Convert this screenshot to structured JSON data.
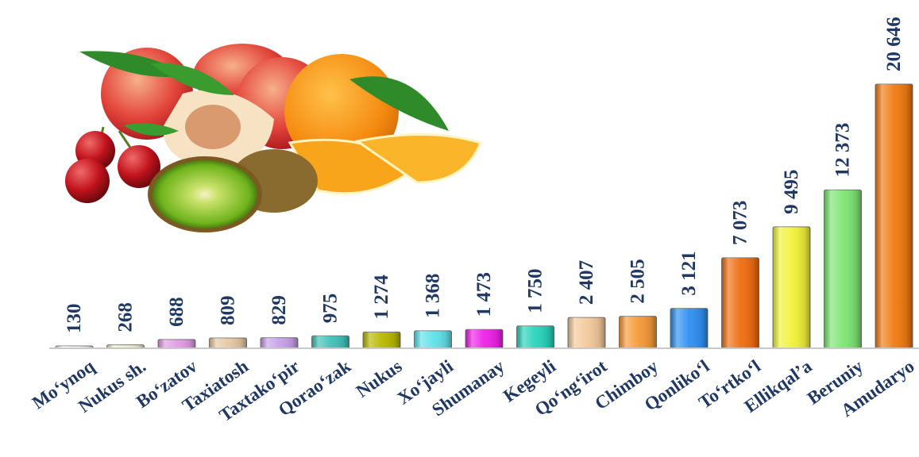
{
  "chart_data": {
    "type": "bar",
    "title": "",
    "xlabel": "",
    "ylabel": "",
    "ylim": [
      0,
      21000
    ],
    "grid": false,
    "legend": "none",
    "categories": [
      "Mo‘ynoq",
      "Nukus sh.",
      "Bo‘zatov",
      "Taxiatosh",
      "Taxtako‘pir",
      "Qorao‘zak",
      "Nukus",
      "Xo‘jayli",
      "Shumanay",
      "Kegeyli",
      "Qo‘ng‘irot",
      "Chimboy",
      "Qonliko‘l",
      "To‘rtko‘l",
      "Ellikqal’a",
      "Beruniy",
      "Amudaryo"
    ],
    "values": [
      130,
      268,
      688,
      809,
      829,
      975,
      1274,
      1368,
      1473,
      1750,
      2407,
      2505,
      3121,
      7073,
      9495,
      12373,
      20646
    ],
    "value_labels": [
      "130",
      "268",
      "688",
      "809",
      "829",
      "975",
      "1 274",
      "1 368",
      "1 473",
      "1 750",
      "2 407",
      "2 505",
      "3 121",
      "7 073",
      "9 495",
      "12 373",
      "20 646"
    ],
    "colors": [
      "#ffffff",
      "#f2eecc",
      "#e39ae6",
      "#e7c8a3",
      "#c8a0ea",
      "#3fc2b8",
      "#b8b800",
      "#5fe3ea",
      "#ee20e9",
      "#27d3bb",
      "#f3c99a",
      "#f59a38",
      "#2f8ff2",
      "#f06d10",
      "#f2f23a",
      "#7ee574",
      "#f07a10"
    ],
    "label_color": "#1f3864",
    "decorative_image": "fruit-illustration"
  }
}
